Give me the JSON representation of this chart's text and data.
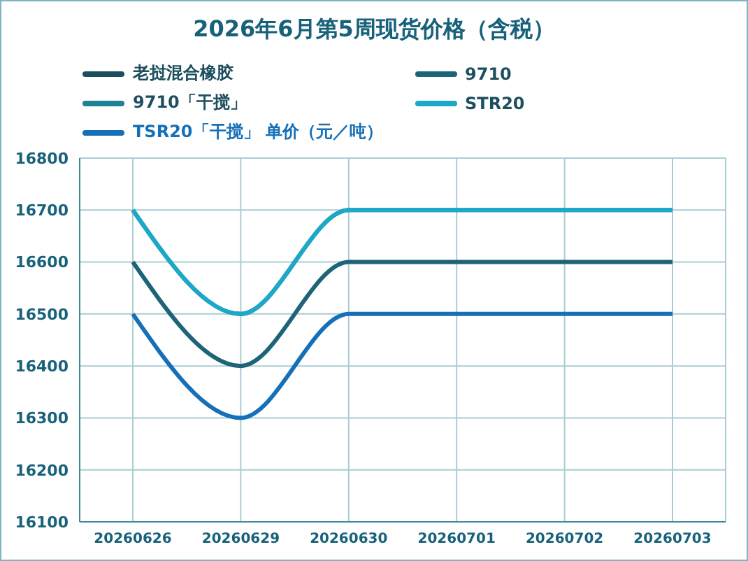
{
  "chart_data": {
    "type": "line",
    "title": "2026年6月第5周现货价格（含税）",
    "categories": [
      "20260626",
      "20260629",
      "20260630",
      "20260701",
      "20260702",
      "20260703"
    ],
    "series": [
      {
        "name": "老挝混合橡胶",
        "color": "#1b4f5e",
        "values": [
          null,
          null,
          null,
          null,
          null,
          null
        ]
      },
      {
        "name": "9710",
        "color": "#1d6478",
        "values": [
          16600,
          16400,
          16600,
          16600,
          16600,
          16600
        ]
      },
      {
        "name": "9710「干搅」",
        "color": "#1f8196",
        "values": [
          16700,
          16500,
          16700,
          16700,
          16700,
          16700
        ]
      },
      {
        "name": "STR20",
        "color": "#1ba8c9",
        "values": [
          16700,
          16500,
          16700,
          16700,
          16700,
          16700
        ]
      },
      {
        "name": "TSR20「干搅」 单价（元／吨）",
        "color": "#1670b8",
        "values": [
          16500,
          16300,
          16500,
          16500,
          16500,
          16500
        ]
      }
    ],
    "ylim": [
      16100,
      16800
    ],
    "yticks": [
      16100,
      16200,
      16300,
      16400,
      16500,
      16600,
      16700,
      16800
    ],
    "grid": true,
    "legend": "top",
    "marker": "none",
    "line_style": "solid"
  }
}
